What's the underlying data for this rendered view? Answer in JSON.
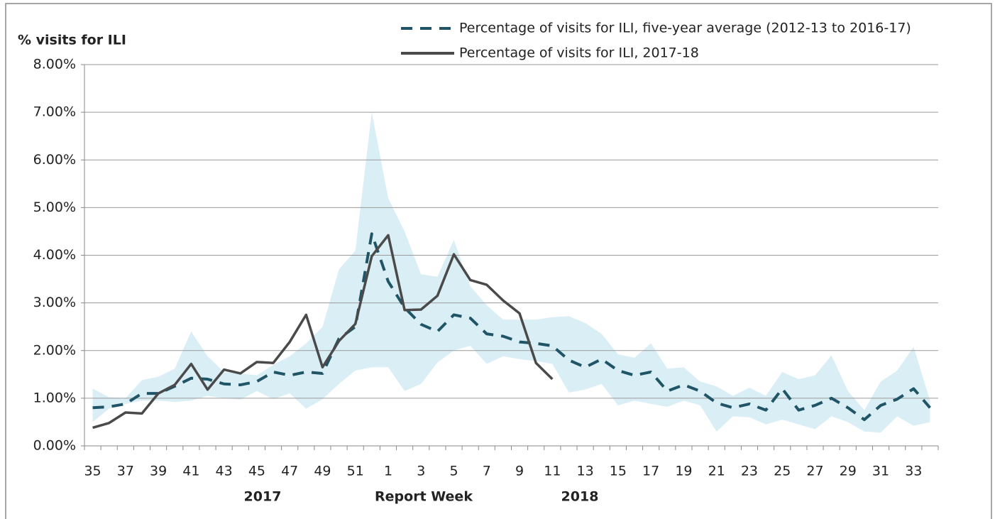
{
  "chart_data": {
    "type": "line",
    "y_label": "% visits for ILI",
    "x_label": "Report Week",
    "annotations": [
      "2017",
      "2018"
    ],
    "categories": [
      "35",
      null,
      "37",
      null,
      "39",
      null,
      "41",
      null,
      "43",
      null,
      "45",
      null,
      "47",
      null,
      "49",
      null,
      "51",
      null,
      "1",
      null,
      "3",
      null,
      "5",
      null,
      "7",
      null,
      "9",
      null,
      "11",
      null,
      "13",
      null,
      "15",
      null,
      "17",
      null,
      "19",
      null,
      "21",
      null,
      "23",
      null,
      "25",
      null,
      "27",
      null,
      "29",
      null,
      "31",
      null,
      "33",
      null
    ],
    "ylim": [
      0,
      8
    ],
    "yticks": [
      {
        "value": 0,
        "label": "0.00%"
      },
      {
        "value": 1,
        "label": "1.00%"
      },
      {
        "value": 2,
        "label": "2.00%"
      },
      {
        "value": 3,
        "label": "3.00%"
      },
      {
        "value": 4,
        "label": "4.00%"
      },
      {
        "value": 5,
        "label": "5.00%"
      },
      {
        "value": 6,
        "label": "6.00%"
      },
      {
        "value": 7,
        "label": "7.00%"
      },
      {
        "value": 8,
        "label": "8.00%"
      }
    ],
    "grid": true,
    "legend": "top-right",
    "band": {
      "color": "#daeef5",
      "upper": [
        1.2,
        1.02,
        1.0,
        1.38,
        1.45,
        1.62,
        2.4,
        1.88,
        1.55,
        1.52,
        1.48,
        1.7,
        1.88,
        2.15,
        2.5,
        3.7,
        4.1,
        7.0,
        5.2,
        4.5,
        3.6,
        3.55,
        4.32,
        3.35,
        2.95,
        2.65,
        2.65,
        2.65,
        2.7,
        2.72,
        2.58,
        2.35,
        1.92,
        1.85,
        2.15,
        1.62,
        1.65,
        1.35,
        1.25,
        1.05,
        1.22,
        1.05,
        1.55,
        1.4,
        1.48,
        1.9,
        1.15,
        0.75,
        1.35,
        1.58,
        2.08,
        0.95
      ],
      "lower": [
        0.5,
        0.78,
        0.88,
        0.95,
        0.95,
        0.92,
        0.95,
        1.05,
        1.0,
        0.97,
        1.15,
        0.98,
        1.1,
        0.78,
        0.98,
        1.3,
        1.58,
        1.65,
        1.65,
        1.15,
        1.3,
        1.75,
        2.0,
        2.1,
        1.72,
        1.88,
        1.82,
        1.78,
        1.72,
        1.12,
        1.18,
        1.3,
        0.85,
        0.95,
        0.88,
        0.82,
        0.95,
        0.85,
        0.3,
        0.62,
        0.6,
        0.45,
        0.55,
        0.45,
        0.35,
        0.62,
        0.5,
        0.3,
        0.28,
        0.62,
        0.42,
        0.5
      ]
    },
    "series": [
      {
        "name": "Percentage of visits for ILI, five-year average (2012-13 to 2016-17)",
        "color": "#1f5566",
        "dashed": true,
        "values": [
          0.8,
          0.82,
          0.88,
          1.1,
          1.1,
          1.25,
          1.42,
          1.4,
          1.3,
          1.28,
          1.35,
          1.55,
          1.48,
          1.55,
          1.52,
          2.25,
          2.5,
          4.45,
          3.45,
          2.9,
          2.55,
          2.4,
          2.75,
          2.68,
          2.35,
          2.3,
          2.18,
          2.15,
          2.1,
          1.8,
          1.65,
          1.82,
          1.58,
          1.48,
          1.55,
          1.15,
          1.28,
          1.15,
          0.9,
          0.8,
          0.88,
          0.75,
          1.2,
          0.75,
          0.85,
          1.0,
          0.8,
          0.55,
          0.85,
          0.98,
          1.2,
          0.8
        ]
      },
      {
        "name": "Percentage of visits for ILI, 2017-18",
        "color": "#4a4a4a",
        "dashed": false,
        "values": [
          0.38,
          0.48,
          0.7,
          0.68,
          1.1,
          1.28,
          1.72,
          1.18,
          1.6,
          1.52,
          1.76,
          1.74,
          2.18,
          2.75,
          1.65,
          2.2,
          2.56,
          3.98,
          4.42,
          2.85,
          2.86,
          3.15,
          4.02,
          3.48,
          3.38,
          3.05,
          2.78,
          1.74,
          1.4,
          null,
          null,
          null,
          null,
          null,
          null,
          null,
          null,
          null,
          null,
          null,
          null,
          null,
          null,
          null,
          null,
          null,
          null,
          null,
          null,
          null,
          null,
          null
        ]
      }
    ]
  }
}
